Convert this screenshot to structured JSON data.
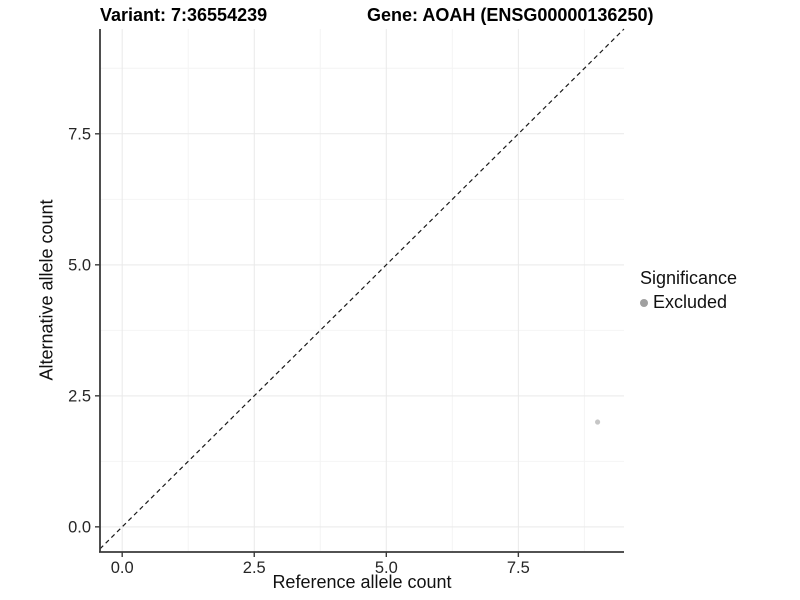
{
  "chart_data": {
    "type": "scatter",
    "titles": {
      "left": "Variant: 7:36554239",
      "right": "Gene: AOAH (ENSG00000136250)"
    },
    "xlabel": "Reference allele count",
    "ylabel": "Alternative allele count",
    "x_tick_labels": [
      "0.0",
      "2.5",
      "5.0",
      "7.5"
    ],
    "x_tick_values": [
      0,
      2.5,
      5,
      7.5
    ],
    "y_tick_labels": [
      "0.0",
      "2.5",
      "5.0",
      "7.5"
    ],
    "y_tick_values": [
      0,
      2.5,
      5,
      7.5
    ],
    "x_minor_values": [
      1.25,
      3.75,
      6.25,
      8.75
    ],
    "y_minor_values": [
      1.25,
      3.75,
      6.25,
      8.75
    ],
    "xlim": [
      -0.42,
      9.5
    ],
    "ylim": [
      -0.48,
      9.5
    ],
    "grid": true,
    "identity_line": {
      "slope": 1,
      "intercept": 0,
      "style": "dashed",
      "color": "#1a1a1a"
    },
    "series": [
      {
        "name": "Excluded",
        "color": "#c6c6c6",
        "size": 2.6,
        "points": [
          {
            "x": 9,
            "y": 2
          }
        ]
      }
    ],
    "legend": {
      "title": "Significance",
      "position": "right",
      "items": [
        {
          "label": "Excluded",
          "color": "#a0a0a0"
        }
      ]
    },
    "colors": {
      "grid_major": "#e9e9e9",
      "grid_minor": "#f4f4f4",
      "axis_line": "#3a3a3a",
      "tick_text": "#262626"
    }
  }
}
